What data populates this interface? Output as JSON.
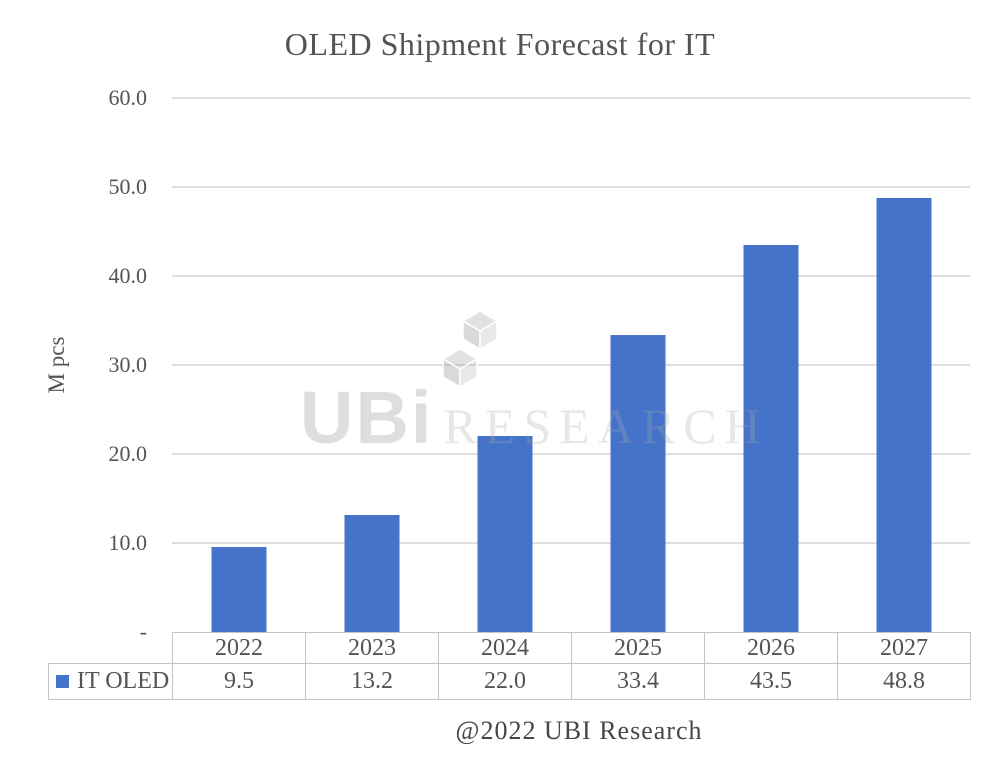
{
  "chart": {
    "title": "OLED Shipment Forecast for IT",
    "y_axis_title": "M pcs",
    "caption": "@2022 UBI Research",
    "watermark": {
      "brand": "UBi",
      "word": "RESEARCH"
    }
  },
  "chart_data": {
    "type": "bar",
    "title": "OLED Shipment Forecast for IT",
    "categories": [
      "2022",
      "2023",
      "2024",
      "2025",
      "2026",
      "2027"
    ],
    "series": [
      {
        "name": "IT OLED",
        "values": [
          9.5,
          13.2,
          22.0,
          33.4,
          43.5,
          48.8
        ]
      }
    ],
    "xlabel": "",
    "ylabel": "M pcs",
    "ylim": [
      0,
      60
    ],
    "yticks": [
      {
        "v": 0,
        "label": "-"
      },
      {
        "v": 10,
        "label": "10.0"
      },
      {
        "v": 20,
        "label": "20.0"
      },
      {
        "v": 30,
        "label": "30.0"
      },
      {
        "v": 40,
        "label": "40.0"
      },
      {
        "v": 50,
        "label": "50.0"
      },
      {
        "v": 60,
        "label": "60.0"
      }
    ],
    "grid": true,
    "legend_position": "data-table-left",
    "bar_color": "#4473C9",
    "value_format_decimals": 1
  },
  "colors": {
    "bar": "#4473C9",
    "gridline": "#DEDEDE",
    "table_border": "#C4C4C4",
    "text": "#545454",
    "caption_text": "#474747"
  }
}
